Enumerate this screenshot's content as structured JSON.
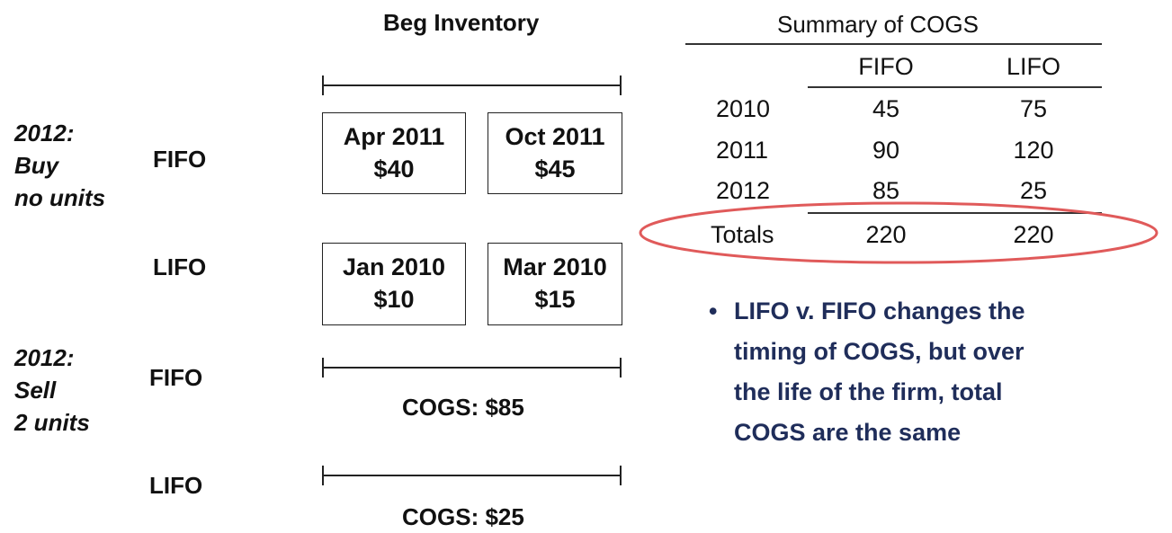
{
  "heading": "Beg Inventory",
  "scenarios": [
    {
      "lines": [
        "2012:",
        "Buy",
        "no units"
      ]
    },
    {
      "lines": [
        "2012:",
        "Sell",
        "2 units"
      ]
    }
  ],
  "methods": {
    "buy_fifo": "FIFO",
    "buy_lifo": "LIFO",
    "sell_fifo": "FIFO",
    "sell_lifo": "LIFO"
  },
  "boxes": [
    {
      "date": "Apr 2011",
      "price": "$40"
    },
    {
      "date": "Oct 2011",
      "price": "$45"
    },
    {
      "date": "Jan 2010",
      "price": "$10"
    },
    {
      "date": "Mar 2010",
      "price": "$15"
    }
  ],
  "cogs": {
    "fifo": "COGS: $85",
    "lifo": "COGS: $25"
  },
  "summary": {
    "title": "Summary of COGS",
    "columns": [
      "FIFO",
      "LIFO"
    ],
    "rows": [
      {
        "label": "2010",
        "fifo": "45",
        "lifo": "75"
      },
      {
        "label": "2011",
        "fifo": "90",
        "lifo": "120"
      },
      {
        "label": "2012",
        "fifo": "85",
        "lifo": "25"
      }
    ],
    "totals": {
      "label": "Totals",
      "fifo": "220",
      "lifo": "220"
    },
    "highlight_color": "#e05a5a"
  },
  "bullet": {
    "marker": "•",
    "lines": [
      "LIFO v. FIFO changes the",
      "timing of COGS, but over",
      "the life of the firm, total",
      "COGS are the same"
    ],
    "color": "#1f2d5a"
  }
}
